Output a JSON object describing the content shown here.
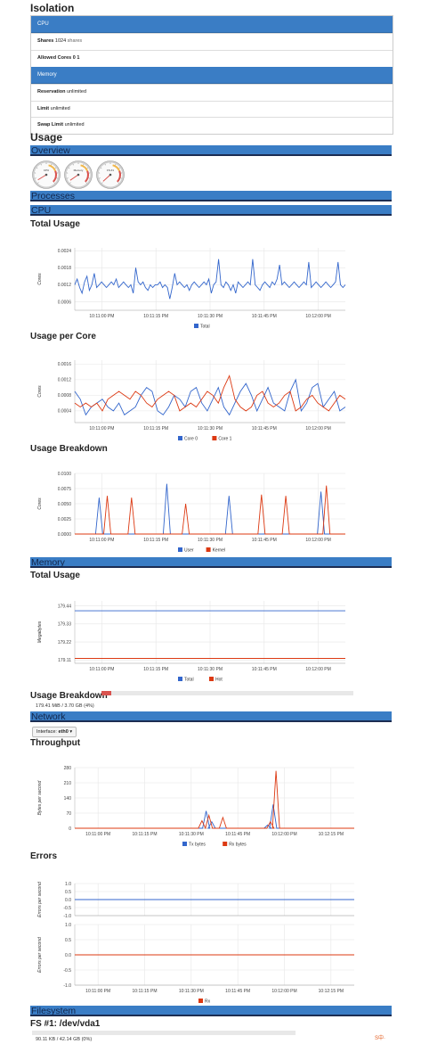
{
  "isolation": {
    "title": "Isolation",
    "cpu_header": "CPU",
    "shares_label": "Shares",
    "shares_value": "1024",
    "shares_unit": "shares",
    "allowed_cores_label": "Allowed Cores",
    "allowed_cores_value": "0 1",
    "memory_header": "Memory",
    "reservation_label": "Reservation",
    "reservation_value": "unlimited",
    "limit_label": "Limit",
    "limit_value": "unlimited",
    "swap_label": "Swap Limit",
    "swap_value": "unlimited"
  },
  "usage": {
    "title": "Usage",
    "overview_bar": "Overview",
    "processes_bar": "Processes",
    "cpu_bar": "CPU",
    "memory_bar": "Memory",
    "network_bar": "Network",
    "filesystem_bar": "Filesystem"
  },
  "gauges": [
    {
      "name": "CPU",
      "value": 0.05
    },
    {
      "name": "Memory",
      "value": 0.04
    },
    {
      "name": "FS #1",
      "value": 0.01
    }
  ],
  "cpu": {
    "total_title": "Total Usage",
    "per_core_title": "Usage per Core",
    "breakdown_title": "Usage Breakdown"
  },
  "memory": {
    "total_title": "Total Usage",
    "breakdown_title": "Usage Breakdown",
    "breakdown_text": "179.41 MiB / 3.70 GB (4%)",
    "breakdown_fraction": 0.04
  },
  "network": {
    "interface_label": "Interface:",
    "interface_value": "eth0",
    "throughput_title": "Throughput",
    "errors_title": "Errors"
  },
  "filesystem": {
    "fs_title": "FS #1: /dev/vda1",
    "fs_text": "90.11 KB / 42.14 GB (0%)",
    "fs_fraction": 0.0
  },
  "logo_text": "S中·",
  "colors": {
    "accent": "#3a7dc5",
    "series_blue": "#3366cc",
    "series_red": "#dc3912",
    "usage_red": "#d9534f"
  },
  "chart_data": [
    {
      "type": "line",
      "id": "cpu-total",
      "ylabel": "Cores",
      "yticks": [
        "0.0024",
        "0.0018",
        "0.0012",
        "0.0006"
      ],
      "ylim": [
        0.0003,
        0.0025
      ],
      "xticks": [
        "10:11:00 PM",
        "10:11:15 PM",
        "10:11:30 PM",
        "10:11:45 PM",
        "10:12:00 PM"
      ],
      "series": [
        {
          "name": "Total",
          "color": "#3366cc",
          "values": [
            0.0012,
            0.0014,
            0.0011,
            0.0009,
            0.0013,
            0.0015,
            0.001,
            0.0012,
            0.0016,
            0.0011,
            0.0012,
            0.0013,
            0.0012,
            0.0011,
            0.0012,
            0.0013,
            0.0012,
            0.0014,
            0.0011,
            0.0012,
            0.0013,
            0.0012,
            0.0011,
            0.0012,
            0.0009,
            0.0018,
            0.0013,
            0.0012,
            0.0013,
            0.0011,
            0.001,
            0.0012,
            0.0011,
            0.0012,
            0.0012,
            0.0013,
            0.0011,
            0.0012,
            0.0011,
            0.0007,
            0.0011,
            0.0016,
            0.0012,
            0.0013,
            0.0012,
            0.0011,
            0.0012,
            0.001,
            0.0012,
            0.0013,
            0.0012,
            0.0011,
            0.0012,
            0.0013,
            0.0012,
            0.0014,
            0.0009,
            0.0012,
            0.0013,
            0.0021,
            0.0012,
            0.0011,
            0.0013,
            0.0012,
            0.001,
            0.0012,
            0.0009,
            0.0013,
            0.0012,
            0.0011,
            0.0012,
            0.0013,
            0.0012,
            0.0021,
            0.0012,
            0.0011,
            0.001,
            0.0012,
            0.0013,
            0.0012,
            0.0011,
            0.0013,
            0.0012,
            0.0014,
            0.0019,
            0.0012,
            0.0013,
            0.0012,
            0.0011,
            0.0012,
            0.0013,
            0.0012,
            0.0011,
            0.0012,
            0.0013,
            0.0012,
            0.002,
            0.0011,
            0.0012,
            0.0013,
            0.0012,
            0.0011,
            0.0012,
            0.0013,
            0.0012,
            0.0011,
            0.0012,
            0.0013,
            0.002,
            0.0012,
            0.0011,
            0.0012
          ]
        }
      ]
    },
    {
      "type": "line",
      "id": "cpu-per-core",
      "ylabel": "Cores",
      "yticks": [
        "0.0016",
        "0.0012",
        "0.0008",
        "0.0004"
      ],
      "ylim": [
        0.0001,
        0.0017
      ],
      "xticks": [
        "10:11:00 PM",
        "10:11:15 PM",
        "10:11:30 PM",
        "10:11:45 PM",
        "10:12:00 PM"
      ],
      "series": [
        {
          "name": "Core 0",
          "color": "#3366cc",
          "values": [
            0.0009,
            0.0007,
            0.0003,
            0.0005,
            0.0006,
            0.0007,
            0.0005,
            0.0004,
            0.0006,
            0.0003,
            0.0004,
            0.0005,
            0.0008,
            0.001,
            0.0009,
            0.0004,
            0.0003,
            0.0005,
            0.0008,
            0.0007,
            0.0005,
            0.0009,
            0.001,
            0.0006,
            0.0004,
            0.0007,
            0.001,
            0.0005,
            0.0003,
            0.0006,
            0.0009,
            0.0011,
            0.0008,
            0.0004,
            0.0007,
            0.001,
            0.0006,
            0.0005,
            0.0004,
            0.0009,
            0.0012,
            0.0004,
            0.0006,
            0.001,
            0.0011,
            0.0005,
            0.0007,
            0.0009,
            0.0004,
            0.0005
          ]
        },
        {
          "name": "Core 1",
          "color": "#dc3912",
          "values": [
            0.0006,
            0.0005,
            0.0006,
            0.0005,
            0.0006,
            0.0004,
            0.0007,
            0.0008,
            0.0009,
            0.0008,
            0.0007,
            0.0009,
            0.0008,
            0.0006,
            0.0005,
            0.0007,
            0.0008,
            0.0009,
            0.0008,
            0.0004,
            0.0005,
            0.0006,
            0.0005,
            0.0007,
            0.0009,
            0.0008,
            0.0006,
            0.001,
            0.0013,
            0.0007,
            0.0005,
            0.0004,
            0.0005,
            0.0008,
            0.0009,
            0.0006,
            0.0005,
            0.0006,
            0.0008,
            0.0009,
            0.0004,
            0.0005,
            0.0007,
            0.0008,
            0.0006,
            0.0005,
            0.0004,
            0.0006,
            0.0008,
            0.0007
          ]
        }
      ]
    },
    {
      "type": "line",
      "id": "cpu-breakdown",
      "ylabel": "Cores",
      "yticks": [
        "0.0100",
        "0.0075",
        "0.0050",
        "0.0025",
        "0.0000"
      ],
      "ylim": [
        0,
        0.01
      ],
      "xticks": [
        "10:11:00 PM",
        "10:11:15 PM",
        "10:11:30 PM",
        "10:11:45 PM",
        "10:12:00 PM"
      ],
      "series": [
        {
          "name": "User",
          "color": "#3366cc",
          "peaks": [
            [
              0.09,
              0.006
            ],
            [
              0.34,
              0.0083
            ],
            [
              0.57,
              0.0063
            ],
            [
              0.91,
              0.007
            ]
          ]
        },
        {
          "name": "Kernel",
          "color": "#dc3912",
          "peaks": [
            [
              0.12,
              0.0063
            ],
            [
              0.21,
              0.006
            ],
            [
              0.41,
              0.005
            ],
            [
              0.69,
              0.0065
            ],
            [
              0.78,
              0.0063
            ],
            [
              0.93,
              0.008
            ]
          ]
        }
      ]
    },
    {
      "type": "line",
      "id": "memory-total",
      "ylabel": "Megabytes",
      "yticks": [
        "179.44",
        "179.33",
        "179.22",
        "179.11"
      ],
      "ylim": [
        179.09,
        179.47
      ],
      "xticks": [
        "10:11:00 PM",
        "10:11:15 PM",
        "10:11:30 PM",
        "10:11:45 PM",
        "10:12:00 PM"
      ],
      "series": [
        {
          "name": "Total",
          "color": "#3366cc",
          "values": [
            179.41,
            179.41
          ]
        },
        {
          "name": "Hot",
          "color": "#dc3912",
          "values": [
            179.12,
            179.12
          ]
        }
      ]
    },
    {
      "type": "line",
      "id": "network-throughput",
      "ylabel": "Bytes per second",
      "yticks": [
        "280",
        "210",
        "140",
        "70",
        "0"
      ],
      "ylim": [
        0,
        280
      ],
      "xticks": [
        "10:11:00 PM",
        "10:11:15 PM",
        "10:11:30 PM",
        "10:11:45 PM",
        "10:12:00 PM",
        "10:12:15 PM"
      ],
      "series": [
        {
          "name": "Tx bytes",
          "color": "#3366cc",
          "peaks": [
            [
              0.47,
              80
            ],
            [
              0.49,
              30
            ],
            [
              0.71,
              110
            ],
            [
              0.69,
              15
            ]
          ]
        },
        {
          "name": "Rx bytes",
          "color": "#dc3912",
          "peaks": [
            [
              0.455,
              35
            ],
            [
              0.48,
              60
            ],
            [
              0.53,
              50
            ],
            [
              0.72,
              265
            ],
            [
              0.7,
              30
            ]
          ]
        }
      ]
    },
    {
      "type": "line",
      "id": "network-errors-tx",
      "ylabel": "Errors per second",
      "yticks": [
        "1.0",
        "0.5",
        "0.0",
        "-0.5",
        "-1.0"
      ],
      "ylim": [
        -1,
        1
      ],
      "series": [
        {
          "name": "Tx",
          "color": "#3366cc",
          "values": [
            0,
            0
          ]
        }
      ]
    },
    {
      "type": "line",
      "id": "network-errors-rx",
      "ylabel": "Errors per second",
      "yticks": [
        "1.0",
        "0.5",
        "0.0",
        "-0.5",
        "-1.0"
      ],
      "ylim": [
        -1,
        1
      ],
      "xticks": [
        "10:11:00 PM",
        "10:11:15 PM",
        "10:11:30 PM",
        "10:11:45 PM",
        "10:12:00 PM",
        "10:12:15 PM"
      ],
      "series": [
        {
          "name": "Rx",
          "color": "#dc3912",
          "values": [
            0,
            0
          ]
        }
      ]
    }
  ]
}
